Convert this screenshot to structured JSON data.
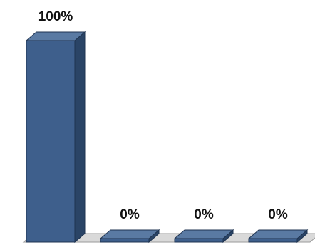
{
  "chart_data": {
    "type": "bar",
    "style": "3d-column",
    "categories": [
      "",
      "",
      "",
      ""
    ],
    "values": [
      100,
      0,
      0,
      0
    ],
    "data_labels": [
      "100%",
      "0%",
      "0%",
      "0%"
    ],
    "ylim": [
      0,
      100
    ],
    "grid": false,
    "legend": "none",
    "colors": {
      "bar_front": "#3e5f8c",
      "bar_side": "#2a4466",
      "bar_top": "#5a7aa3",
      "bar_outline": "#1f3350",
      "floor_dark": "#2f4d74",
      "floor_light": "#d9d9d9"
    }
  }
}
